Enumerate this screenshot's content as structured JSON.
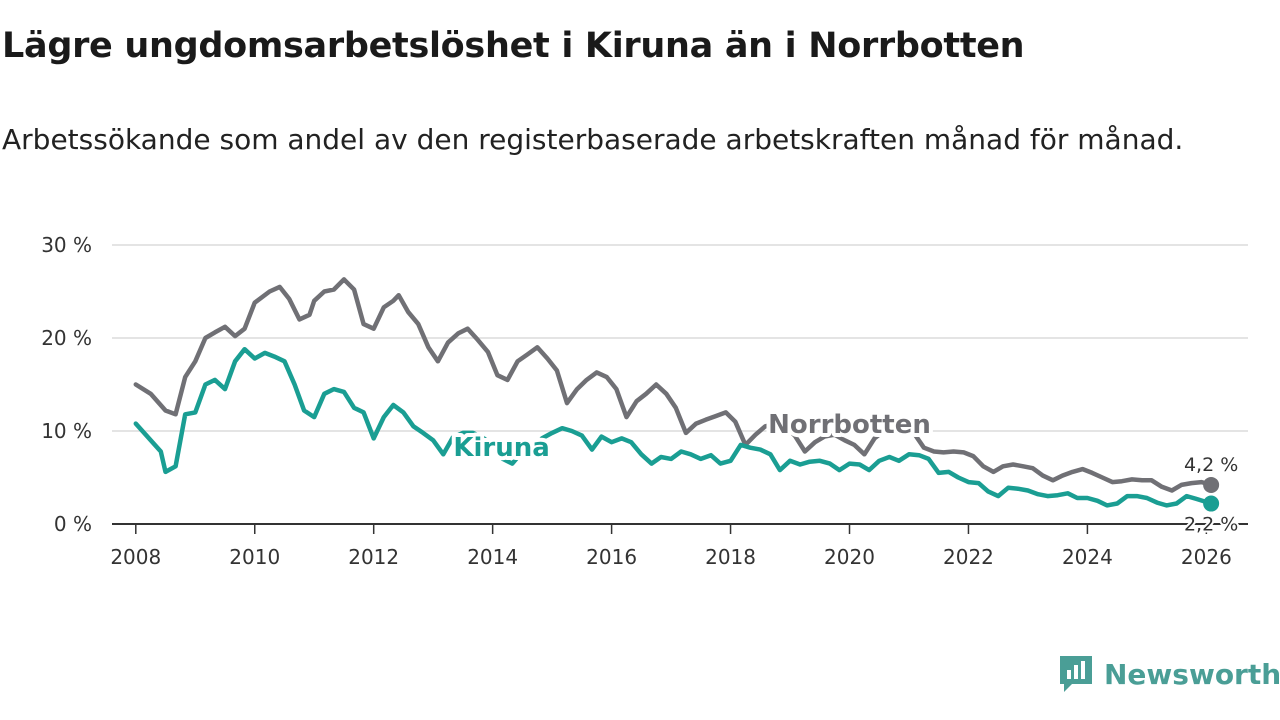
{
  "header": {
    "title": "Lägre ungdomsarbetslöshet i Kiruna än i Norrbotten",
    "subtitle": "Arbetssökande som andel av den registerbaserade arbetskraften månad för månad."
  },
  "brand": {
    "name": "Newsworthy",
    "icon": "newsworthy-logo-icon",
    "color": "#4a9e96"
  },
  "chart_data": {
    "type": "line",
    "title": "Lägre ungdomsarbetslöshet i Kiruna än i Norrbotten",
    "subtitle": "Arbetssökande som andel av den registerbaserade arbetskraften månad för månad.",
    "xlabel": "",
    "ylabel": "",
    "xlim": [
      2007.6,
      2026.7
    ],
    "ylim": [
      0,
      30
    ],
    "grid": true,
    "y_ticks": [
      0,
      10,
      20,
      30
    ],
    "y_tick_labels": [
      "0 %",
      "10 %",
      "20 %",
      "30 %"
    ],
    "x_ticks": [
      2008,
      2010,
      2012,
      2014,
      2016,
      2018,
      2020,
      2022,
      2024,
      2026
    ],
    "x_tick_labels": [
      "2008",
      "2010",
      "2012",
      "2014",
      "2016",
      "2018",
      "2020",
      "2022",
      "2024",
      "2026"
    ],
    "series": [
      {
        "name": "Norrbotten",
        "color": "#707075",
        "end_value": 4.2,
        "end_label": "4,2 %",
        "points": [
          [
            2008.0,
            15.0
          ],
          [
            2008.25,
            14.0
          ],
          [
            2008.5,
            12.2
          ],
          [
            2008.67,
            11.8
          ],
          [
            2008.83,
            15.8
          ],
          [
            2009.0,
            17.5
          ],
          [
            2009.17,
            20.0
          ],
          [
            2009.33,
            20.6
          ],
          [
            2009.5,
            21.2
          ],
          [
            2009.67,
            20.2
          ],
          [
            2009.83,
            21.0
          ],
          [
            2010.0,
            23.8
          ],
          [
            2010.25,
            25.0
          ],
          [
            2010.42,
            25.5
          ],
          [
            2010.58,
            24.2
          ],
          [
            2010.75,
            22.0
          ],
          [
            2010.92,
            22.5
          ],
          [
            2011.0,
            24.0
          ],
          [
            2011.17,
            25.0
          ],
          [
            2011.33,
            25.2
          ],
          [
            2011.5,
            26.3
          ],
          [
            2011.67,
            25.2
          ],
          [
            2011.83,
            21.5
          ],
          [
            2012.0,
            21.0
          ],
          [
            2012.17,
            23.3
          ],
          [
            2012.33,
            24.0
          ],
          [
            2012.42,
            24.6
          ],
          [
            2012.58,
            22.8
          ],
          [
            2012.75,
            21.5
          ],
          [
            2012.92,
            19.0
          ],
          [
            2013.08,
            17.5
          ],
          [
            2013.25,
            19.5
          ],
          [
            2013.42,
            20.5
          ],
          [
            2013.58,
            21.0
          ],
          [
            2013.75,
            19.8
          ],
          [
            2013.92,
            18.5
          ],
          [
            2014.08,
            16.0
          ],
          [
            2014.25,
            15.5
          ],
          [
            2014.42,
            17.5
          ],
          [
            2014.58,
            18.2
          ],
          [
            2014.75,
            19.0
          ],
          [
            2014.92,
            17.8
          ],
          [
            2015.08,
            16.5
          ],
          [
            2015.25,
            13.0
          ],
          [
            2015.42,
            14.5
          ],
          [
            2015.58,
            15.5
          ],
          [
            2015.75,
            16.3
          ],
          [
            2015.92,
            15.8
          ],
          [
            2016.08,
            14.5
          ],
          [
            2016.25,
            11.5
          ],
          [
            2016.42,
            13.2
          ],
          [
            2016.58,
            14.0
          ],
          [
            2016.75,
            15.0
          ],
          [
            2016.92,
            14.0
          ],
          [
            2017.08,
            12.5
          ],
          [
            2017.25,
            9.8
          ],
          [
            2017.42,
            10.8
          ],
          [
            2017.58,
            11.2
          ],
          [
            2017.75,
            11.6
          ],
          [
            2017.92,
            12.0
          ],
          [
            2018.08,
            11.0
          ],
          [
            2018.25,
            8.5
          ],
          [
            2018.42,
            9.6
          ],
          [
            2018.58,
            10.5
          ],
          [
            2018.75,
            10.8
          ],
          [
            2018.92,
            10.5
          ],
          [
            2019.08,
            9.5
          ],
          [
            2019.25,
            7.8
          ],
          [
            2019.42,
            8.8
          ],
          [
            2019.58,
            9.4
          ],
          [
            2019.75,
            9.6
          ],
          [
            2019.92,
            9.0
          ],
          [
            2020.08,
            8.5
          ],
          [
            2020.25,
            7.5
          ],
          [
            2020.42,
            9.2
          ],
          [
            2020.58,
            10.0
          ],
          [
            2020.75,
            10.3
          ],
          [
            2020.92,
            10.5
          ],
          [
            2021.08,
            9.8
          ],
          [
            2021.25,
            8.2
          ],
          [
            2021.42,
            7.8
          ],
          [
            2021.58,
            7.7
          ],
          [
            2021.75,
            7.8
          ],
          [
            2021.92,
            7.7
          ],
          [
            2022.08,
            7.3
          ],
          [
            2022.25,
            6.2
          ],
          [
            2022.42,
            5.6
          ],
          [
            2022.58,
            6.2
          ],
          [
            2022.75,
            6.4
          ],
          [
            2022.92,
            6.2
          ],
          [
            2023.08,
            6.0
          ],
          [
            2023.25,
            5.2
          ],
          [
            2023.42,
            4.7
          ],
          [
            2023.58,
            5.2
          ],
          [
            2023.75,
            5.6
          ],
          [
            2023.92,
            5.9
          ],
          [
            2024.08,
            5.5
          ],
          [
            2024.25,
            5.0
          ],
          [
            2024.42,
            4.5
          ],
          [
            2024.58,
            4.6
          ],
          [
            2024.75,
            4.8
          ],
          [
            2024.92,
            4.7
          ],
          [
            2025.08,
            4.7
          ],
          [
            2025.25,
            4.0
          ],
          [
            2025.42,
            3.6
          ],
          [
            2025.58,
            4.2
          ],
          [
            2025.75,
            4.4
          ],
          [
            2025.92,
            4.5
          ],
          [
            2026.08,
            4.2
          ]
        ]
      },
      {
        "name": "Kiruna",
        "color": "#1a9e93",
        "end_value": 2.2,
        "end_label": "2,2 %",
        "points": [
          [
            2008.0,
            10.8
          ],
          [
            2008.25,
            9.0
          ],
          [
            2008.42,
            7.8
          ],
          [
            2008.5,
            5.6
          ],
          [
            2008.67,
            6.2
          ],
          [
            2008.83,
            11.8
          ],
          [
            2009.0,
            12.0
          ],
          [
            2009.17,
            15.0
          ],
          [
            2009.33,
            15.5
          ],
          [
            2009.5,
            14.5
          ],
          [
            2009.67,
            17.5
          ],
          [
            2009.83,
            18.8
          ],
          [
            2010.0,
            17.8
          ],
          [
            2010.17,
            18.4
          ],
          [
            2010.33,
            18.0
          ],
          [
            2010.5,
            17.5
          ],
          [
            2010.67,
            15.0
          ],
          [
            2010.83,
            12.2
          ],
          [
            2011.0,
            11.5
          ],
          [
            2011.17,
            14.0
          ],
          [
            2011.33,
            14.5
          ],
          [
            2011.5,
            14.2
          ],
          [
            2011.67,
            12.5
          ],
          [
            2011.83,
            12.0
          ],
          [
            2012.0,
            9.2
          ],
          [
            2012.17,
            11.5
          ],
          [
            2012.33,
            12.8
          ],
          [
            2012.5,
            12.0
          ],
          [
            2012.67,
            10.5
          ],
          [
            2012.83,
            9.8
          ],
          [
            2013.0,
            9.0
          ],
          [
            2013.17,
            7.5
          ],
          [
            2013.33,
            9.3
          ],
          [
            2013.5,
            9.8
          ],
          [
            2013.67,
            9.8
          ],
          [
            2013.83,
            9.3
          ],
          [
            2014.0,
            8.5
          ],
          [
            2014.17,
            7.0
          ],
          [
            2014.33,
            6.5
          ],
          [
            2014.5,
            7.8
          ],
          [
            2014.67,
            8.0
          ],
          [
            2014.83,
            9.2
          ],
          [
            2015.0,
            9.8
          ],
          [
            2015.17,
            10.3
          ],
          [
            2015.33,
            10.0
          ],
          [
            2015.5,
            9.5
          ],
          [
            2015.67,
            8.0
          ],
          [
            2015.83,
            9.4
          ],
          [
            2016.0,
            8.8
          ],
          [
            2016.17,
            9.2
          ],
          [
            2016.33,
            8.8
          ],
          [
            2016.5,
            7.5
          ],
          [
            2016.67,
            6.5
          ],
          [
            2016.83,
            7.2
          ],
          [
            2017.0,
            7.0
          ],
          [
            2017.17,
            7.8
          ],
          [
            2017.33,
            7.5
          ],
          [
            2017.5,
            7.0
          ],
          [
            2017.67,
            7.4
          ],
          [
            2017.83,
            6.5
          ],
          [
            2018.0,
            6.8
          ],
          [
            2018.17,
            8.5
          ],
          [
            2018.33,
            8.2
          ],
          [
            2018.5,
            8.0
          ],
          [
            2018.67,
            7.5
          ],
          [
            2018.83,
            5.8
          ],
          [
            2019.0,
            6.8
          ],
          [
            2019.17,
            6.4
          ],
          [
            2019.33,
            6.7
          ],
          [
            2019.5,
            6.8
          ],
          [
            2019.67,
            6.5
          ],
          [
            2019.83,
            5.8
          ],
          [
            2020.0,
            6.5
          ],
          [
            2020.17,
            6.4
          ],
          [
            2020.33,
            5.8
          ],
          [
            2020.5,
            6.8
          ],
          [
            2020.67,
            7.2
          ],
          [
            2020.83,
            6.8
          ],
          [
            2021.0,
            7.5
          ],
          [
            2021.17,
            7.4
          ],
          [
            2021.33,
            7.0
          ],
          [
            2021.5,
            5.5
          ],
          [
            2021.67,
            5.6
          ],
          [
            2021.83,
            5.0
          ],
          [
            2022.0,
            4.5
          ],
          [
            2022.17,
            4.4
          ],
          [
            2022.33,
            3.5
          ],
          [
            2022.5,
            3.0
          ],
          [
            2022.67,
            3.9
          ],
          [
            2022.83,
            3.8
          ],
          [
            2023.0,
            3.6
          ],
          [
            2023.17,
            3.2
          ],
          [
            2023.33,
            3.0
          ],
          [
            2023.5,
            3.1
          ],
          [
            2023.67,
            3.3
          ],
          [
            2023.83,
            2.8
          ],
          [
            2024.0,
            2.8
          ],
          [
            2024.17,
            2.5
          ],
          [
            2024.33,
            2.0
          ],
          [
            2024.5,
            2.2
          ],
          [
            2024.67,
            3.0
          ],
          [
            2024.83,
            3.0
          ],
          [
            2025.0,
            2.8
          ],
          [
            2025.17,
            2.3
          ],
          [
            2025.33,
            2.0
          ],
          [
            2025.5,
            2.2
          ],
          [
            2025.67,
            3.0
          ],
          [
            2025.83,
            2.7
          ],
          [
            2026.08,
            2.2
          ]
        ]
      }
    ],
    "annotations": [
      {
        "series": "Norrbotten",
        "text": "Norrbotten",
        "x": 2020.0,
        "y": 9.8
      },
      {
        "series": "Kiruna",
        "text": "Kiruna",
        "x": 2014.15,
        "y": 7.3
      }
    ]
  }
}
